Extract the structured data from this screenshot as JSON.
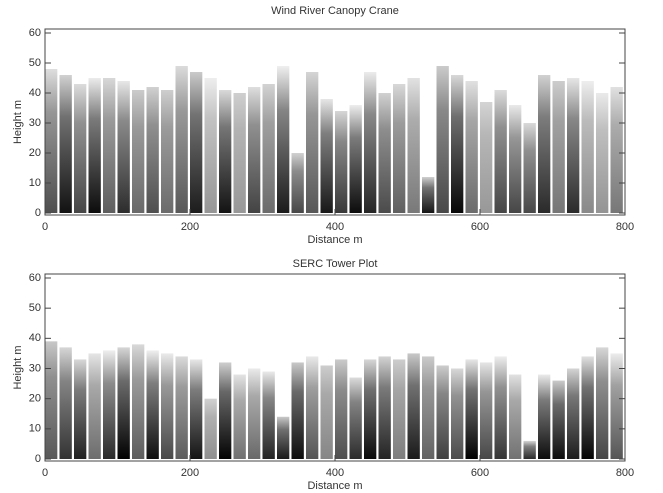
{
  "chart_data": [
    {
      "type": "bar",
      "title": "Wind River Canopy Crane",
      "xlabel": "Distance m",
      "ylabel": "Height m",
      "x": [
        0,
        20,
        40,
        60,
        80,
        100,
        120,
        140,
        160,
        180,
        200,
        220,
        240,
        260,
        280,
        300,
        320,
        340,
        360,
        380,
        400,
        420,
        440,
        460,
        480,
        500,
        520,
        540,
        560,
        580,
        600,
        620,
        640,
        660,
        680,
        700,
        720,
        740,
        760,
        780
      ],
      "values": [
        48,
        46,
        43,
        45,
        45,
        44,
        41,
        42,
        41,
        49,
        47,
        45,
        41,
        40,
        42,
        43,
        49,
        20,
        47,
        38,
        34,
        36,
        47,
        40,
        43,
        45,
        12,
        49,
        46,
        44,
        37,
        41,
        36,
        30,
        46,
        44,
        45,
        44,
        40,
        42
      ],
      "xlim": [
        0,
        800
      ],
      "xticks": [
        0,
        200,
        400,
        600,
        800
      ],
      "ylim": [
        0,
        60
      ],
      "yticks": [
        0,
        10,
        20,
        30,
        40,
        50,
        60
      ]
    },
    {
      "type": "bar",
      "title": "SERC Tower Plot",
      "xlabel": "Distance m",
      "ylabel": "Height m",
      "x": [
        0,
        20,
        40,
        60,
        80,
        100,
        120,
        140,
        160,
        180,
        200,
        220,
        240,
        260,
        280,
        300,
        320,
        340,
        360,
        380,
        400,
        420,
        440,
        460,
        480,
        500,
        520,
        540,
        560,
        580,
        600,
        620,
        640,
        660,
        680,
        700,
        720,
        740,
        760,
        780
      ],
      "values": [
        39,
        37,
        33,
        35,
        36,
        37,
        38,
        36,
        35,
        34,
        33,
        20,
        32,
        28,
        30,
        29,
        14,
        32,
        34,
        31,
        33,
        27,
        33,
        34,
        33,
        35,
        34,
        31,
        30,
        33,
        32,
        34,
        28,
        6,
        28,
        26,
        30,
        34,
        37,
        35
      ],
      "xlim": [
        0,
        800
      ],
      "xticks": [
        0,
        200,
        400,
        600,
        800
      ],
      "ylim": [
        0,
        60
      ],
      "yticks": [
        0,
        10,
        20,
        30,
        40,
        50,
        60
      ]
    }
  ]
}
